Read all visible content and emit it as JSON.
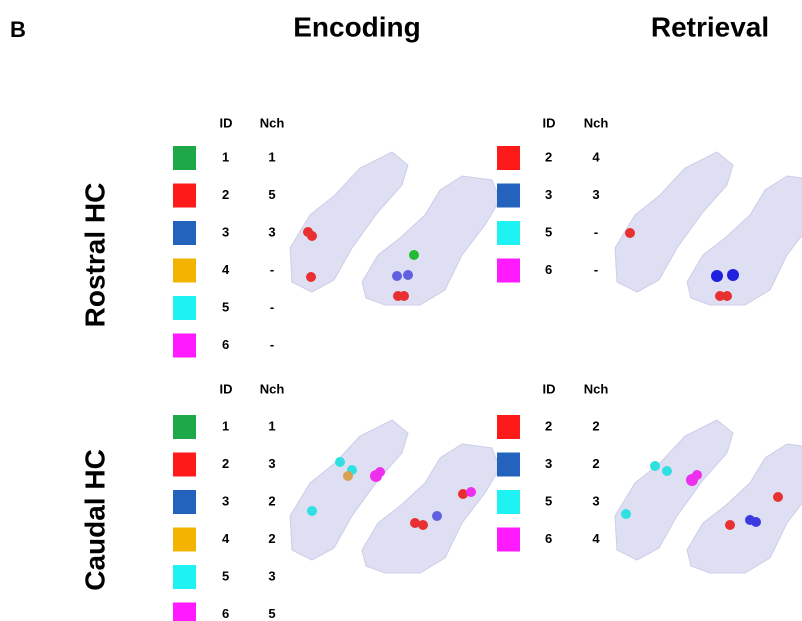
{
  "panel_label": "B",
  "columns": [
    "Encoding",
    "Retrieval"
  ],
  "rows": [
    "Rostral HC",
    "Caudal HC"
  ],
  "tables": [
    {
      "header": [
        "ID",
        "Nch"
      ],
      "entries": [
        {
          "id": 1,
          "nch": 1,
          "color": "#1fa84a"
        },
        {
          "id": 2,
          "nch": 5,
          "color": "#ff1a1a"
        },
        {
          "id": 3,
          "nch": 3,
          "color": "#2363bd"
        },
        {
          "id": 4,
          "nch": "-",
          "color": "#f2b400"
        },
        {
          "id": 5,
          "nch": "-",
          "color": "#1ef2f2"
        },
        {
          "id": 6,
          "nch": "-",
          "color": "#ff1aff"
        }
      ]
    },
    {
      "header": [
        "ID",
        "Nch"
      ],
      "entries": [
        {
          "id": 2,
          "nch": 4,
          "color": "#ff1a1a"
        },
        {
          "id": 3,
          "nch": 3,
          "color": "#2363bd"
        },
        {
          "id": 5,
          "nch": "-",
          "color": "#1ef2f2"
        },
        {
          "id": 6,
          "nch": "-",
          "color": "#ff1aff"
        }
      ]
    },
    {
      "header": [
        "ID",
        "Nch"
      ],
      "entries": [
        {
          "id": 1,
          "nch": 1,
          "color": "#1fa84a"
        },
        {
          "id": 2,
          "nch": 3,
          "color": "#ff1a1a"
        },
        {
          "id": 3,
          "nch": 2,
          "color": "#2363bd"
        },
        {
          "id": 4,
          "nch": 2,
          "color": "#f2b400"
        },
        {
          "id": 5,
          "nch": 3,
          "color": "#1ef2f2"
        },
        {
          "id": 6,
          "nch": 5,
          "color": "#ff1aff"
        }
      ]
    },
    {
      "header": [
        "ID",
        "Nch"
      ],
      "entries": [
        {
          "id": 2,
          "nch": 2,
          "color": "#ff1a1a"
        },
        {
          "id": 3,
          "nch": 2,
          "color": "#2363bd"
        },
        {
          "id": 5,
          "nch": 3,
          "color": "#1ef2f2"
        },
        {
          "id": 6,
          "nch": 4,
          "color": "#ff1aff"
        }
      ]
    }
  ]
}
